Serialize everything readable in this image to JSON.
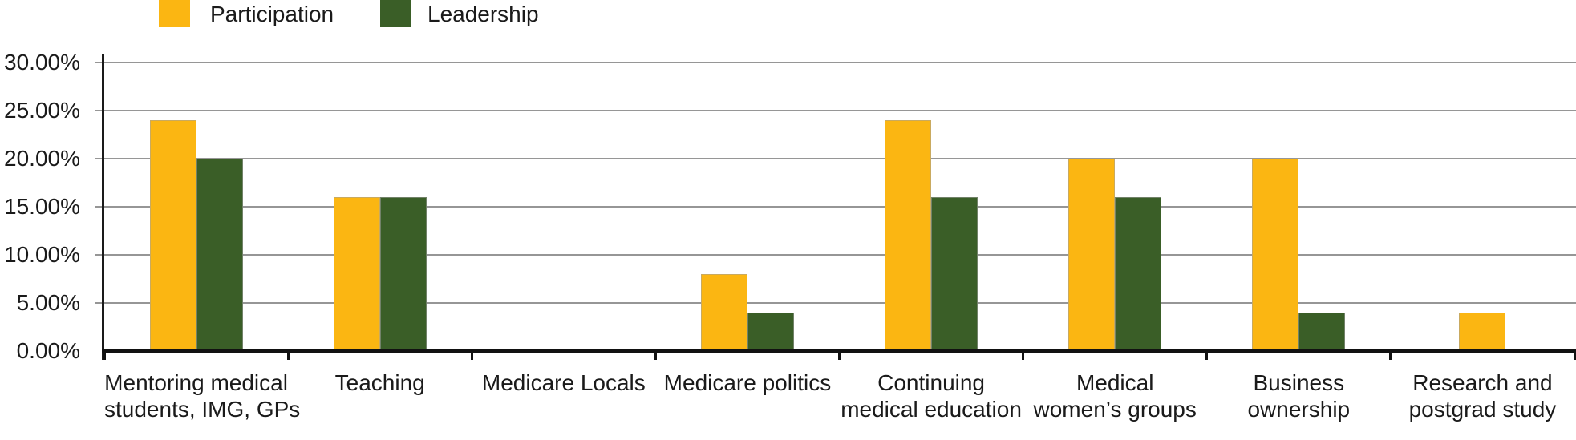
{
  "chart_data": {
    "type": "bar",
    "title": "",
    "xlabel": "",
    "ylabel": "",
    "categories": [
      "Mentoring medical students, IMG, GPs",
      "Teaching",
      "Medicare Locals",
      "Medicare politics",
      "Continuing medical education",
      "Medical women’s groups",
      "Business ownership",
      "Research and postgrad study"
    ],
    "category_label_lines": [
      [
        "Mentoring medical",
        "students, IMG, GPs"
      ],
      [
        "Teaching"
      ],
      [
        "Medicare Locals"
      ],
      [
        "Medicare politics"
      ],
      [
        "Continuing",
        "medical education"
      ],
      [
        "Medical",
        "women’s groups"
      ],
      [
        "Business",
        "ownership"
      ],
      [
        "Research and",
        "postgrad study"
      ]
    ],
    "series": [
      {
        "name": "Participation",
        "color": "#FBB612",
        "values": [
          24,
          16,
          0,
          8,
          24,
          20,
          20,
          4
        ]
      },
      {
        "name": "Leadership",
        "color": "#3A5E27",
        "values": [
          20,
          16,
          0,
          4,
          16,
          16,
          4,
          0
        ]
      }
    ],
    "value_unit": "%",
    "y_axis": {
      "min": 0,
      "max": 30,
      "tick_step": 5,
      "tick_labels": [
        "0.00%",
        "5.00%",
        "10.00%",
        "15.00%",
        "20.00%",
        "25.00%",
        "30.00%"
      ]
    },
    "grid": true,
    "legend_position": "top"
  },
  "colors": {
    "background": "#FFFFFF",
    "gridline": "#969696",
    "axis": "#111111",
    "text": "#1A1A1A"
  }
}
